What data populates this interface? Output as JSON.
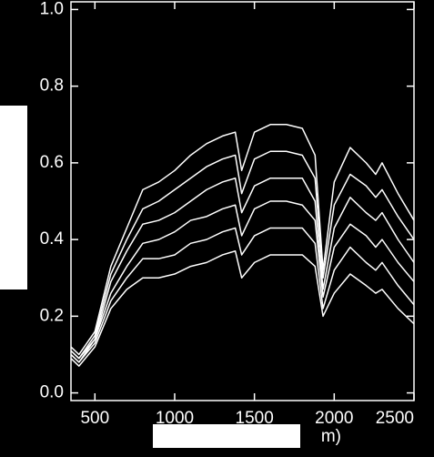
{
  "chart_data": {
    "type": "line",
    "x": [
      350,
      400,
      500,
      600,
      700,
      800,
      900,
      1000,
      1100,
      1200,
      1300,
      1380,
      1420,
      1500,
      1600,
      1700,
      1800,
      1880,
      1930,
      2000,
      2100,
      2200,
      2260,
      2300,
      2400,
      2500
    ],
    "series": [
      {
        "color": "#ffffff",
        "values": [
          0.12,
          0.1,
          0.16,
          0.33,
          0.43,
          0.53,
          0.55,
          0.58,
          0.62,
          0.65,
          0.67,
          0.68,
          0.58,
          0.68,
          0.7,
          0.7,
          0.69,
          0.62,
          0.32,
          0.55,
          0.64,
          0.6,
          0.57,
          0.6,
          0.52,
          0.45
        ]
      },
      {
        "color": "#ffffff",
        "values": [
          0.11,
          0.09,
          0.15,
          0.31,
          0.4,
          0.48,
          0.5,
          0.53,
          0.56,
          0.59,
          0.61,
          0.62,
          0.52,
          0.61,
          0.63,
          0.63,
          0.62,
          0.56,
          0.3,
          0.49,
          0.57,
          0.54,
          0.51,
          0.53,
          0.46,
          0.4
        ]
      },
      {
        "color": "#ffffff",
        "values": [
          0.11,
          0.09,
          0.14,
          0.29,
          0.37,
          0.44,
          0.45,
          0.47,
          0.5,
          0.53,
          0.55,
          0.56,
          0.47,
          0.54,
          0.56,
          0.56,
          0.56,
          0.5,
          0.27,
          0.43,
          0.51,
          0.47,
          0.45,
          0.47,
          0.4,
          0.34
        ]
      },
      {
        "color": "#ffffff",
        "values": [
          0.1,
          0.08,
          0.14,
          0.26,
          0.33,
          0.39,
          0.4,
          0.42,
          0.45,
          0.46,
          0.48,
          0.49,
          0.41,
          0.48,
          0.5,
          0.5,
          0.49,
          0.45,
          0.25,
          0.38,
          0.44,
          0.41,
          0.38,
          0.4,
          0.34,
          0.29
        ]
      },
      {
        "color": "#ffffff",
        "values": [
          0.1,
          0.08,
          0.13,
          0.24,
          0.3,
          0.35,
          0.35,
          0.36,
          0.39,
          0.4,
          0.42,
          0.43,
          0.36,
          0.41,
          0.43,
          0.43,
          0.43,
          0.39,
          0.22,
          0.32,
          0.38,
          0.34,
          0.32,
          0.34,
          0.28,
          0.23
        ]
      },
      {
        "color": "#ffffff",
        "values": [
          0.09,
          0.07,
          0.12,
          0.22,
          0.27,
          0.3,
          0.3,
          0.31,
          0.33,
          0.34,
          0.36,
          0.37,
          0.3,
          0.34,
          0.36,
          0.36,
          0.36,
          0.33,
          0.2,
          0.26,
          0.31,
          0.28,
          0.26,
          0.27,
          0.22,
          0.18
        ]
      }
    ],
    "xlabel": "m)",
    "xlim": [
      350,
      2500
    ],
    "xticks": [
      500,
      1000,
      1500,
      2000,
      2500
    ],
    "ylim": [
      -0.02,
      1.02
    ],
    "yticks": [
      {
        "value": 0,
        "label": "0.0"
      },
      0.2,
      0.4,
      0.6,
      0.8,
      {
        "value": 1,
        "label": "1.0"
      }
    ]
  }
}
